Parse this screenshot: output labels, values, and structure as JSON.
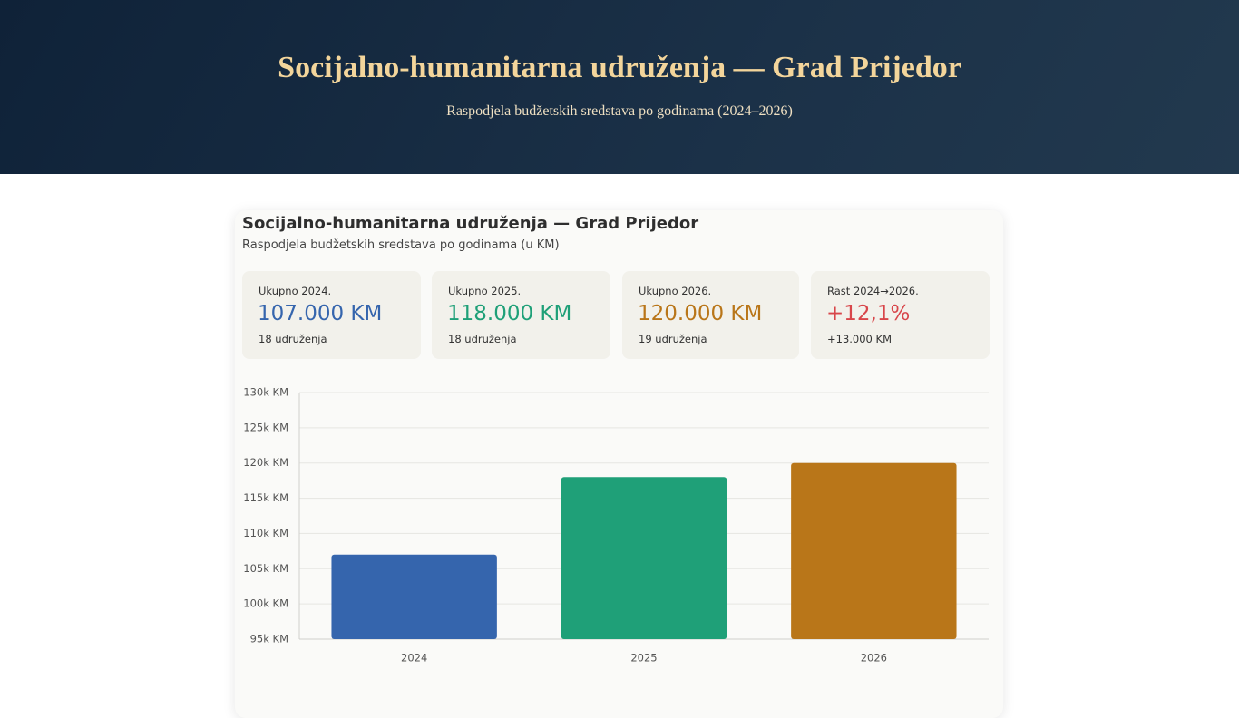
{
  "header": {
    "title": "Socijalno-humanitarna udruženja — Grad Prijedor",
    "subtitle": "Raspodjela budžetskih sredstava po godinama (2024–2026)"
  },
  "card": {
    "title": "Socijalno-humanitarna udruženja — Grad Prijedor",
    "subtitle": "Raspodjela budžetskih sredstava po godinama (u KM)",
    "stats": [
      {
        "label": "Ukupno 2024.",
        "value": "107.000 KM",
        "note": "18 udruženja",
        "color": "#3565ad"
      },
      {
        "label": "Ukupno 2025.",
        "value": "118.000 KM",
        "note": "18 udruženja",
        "color": "#1fa078"
      },
      {
        "label": "Ukupno 2026.",
        "value": "120.000 KM",
        "note": "19 udruženja",
        "color": "#b97619"
      },
      {
        "label": "Rast 2024→2026.",
        "value": "+12,1%",
        "note": "+13.000 KM",
        "color": "#d8464a"
      }
    ]
  },
  "chart_data": {
    "type": "bar",
    "categories": [
      "2024",
      "2025",
      "2026"
    ],
    "values": [
      107000,
      118000,
      120000
    ],
    "colors": [
      "#3565ad",
      "#1fa078",
      "#b97619"
    ],
    "ylim": [
      95000,
      130000
    ],
    "yticks": [
      {
        "value": 95000,
        "label": "95k KM"
      },
      {
        "value": 100000,
        "label": "100k KM"
      },
      {
        "value": 105000,
        "label": "105k KM"
      },
      {
        "value": 110000,
        "label": "110k KM"
      },
      {
        "value": 115000,
        "label": "115k KM"
      },
      {
        "value": 120000,
        "label": "120k KM"
      },
      {
        "value": 125000,
        "label": "125k KM"
      },
      {
        "value": 130000,
        "label": "130k KM"
      }
    ],
    "grid": true
  }
}
